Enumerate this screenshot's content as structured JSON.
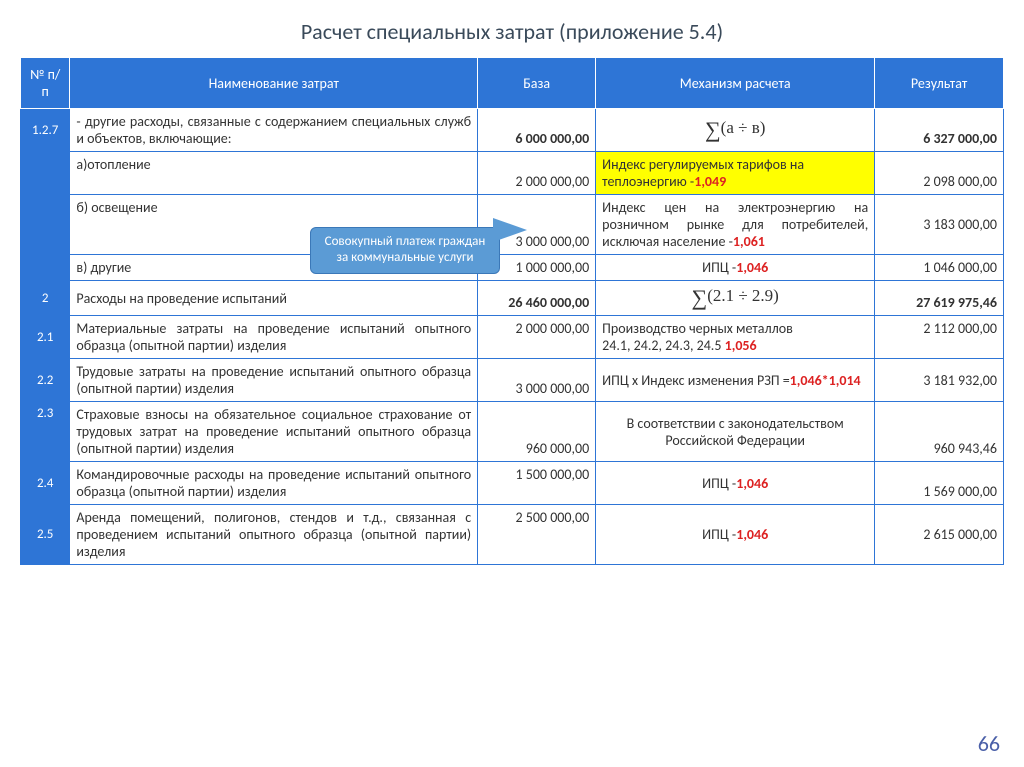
{
  "title": "Расчет специальных затрат (приложение 5.4)",
  "page_number": "66",
  "columns": {
    "c1": "№ п/п",
    "c2": "Наименование затрат",
    "c3": "База",
    "c4": "Механизм расчета",
    "c5": "Результат"
  },
  "callout": "Совокупный платеж граждан за коммунальные услуги",
  "rows": {
    "r1": {
      "id": "1.2.7",
      "name": "- другие расходы, связанные с содержанием специальных служб и объектов, включающие:",
      "base": "6 000 000,00",
      "mech": "∑(а ÷ в)",
      "res": "6 327 000,00"
    },
    "r2": {
      "id": "",
      "name": "а)отопление",
      "base": "2 000 000,00",
      "mech_pre": "Индекс регулируемых тарифов на теплоэнергию -",
      "mech_val": "1,049",
      "res": "2 098 000,00"
    },
    "r3": {
      "id": "",
      "name": "б) освещение",
      "base": "3 000 000,00",
      "mech_pre": "Индекс цен на электроэнергию на розничном рынке для потребителей, исключая население -",
      "mech_val": "1,061",
      "res": "3 183 000,00"
    },
    "r4": {
      "id": "",
      "name": "в) другие",
      "base": "1 000 000,00",
      "mech_pre": "ИПЦ -",
      "mech_val": "1,046",
      "res": "1 046 000,00"
    },
    "r5": {
      "id": "2",
      "name": "Расходы на проведение испытаний",
      "base": "26 460 000,00",
      "mech": "∑(2.1 ÷ 2.9)",
      "res": "27 619 975,46"
    },
    "r6": {
      "id": "2.1",
      "name": "Материальные затраты на проведение испытаний опытного образца (опытной партии) изделия",
      "base": "2 000 000,00",
      "mech_pre": "Производство черных металлов\n24.1, 24.2, 24.3, 24.5 ",
      "mech_val": "1,056",
      "res": "2 112 000,00"
    },
    "r7": {
      "id": "2.2",
      "name": "Трудовые затраты на проведение испытаний опытного образца (опытной партии) изделия",
      "base": "3 000 000,00",
      "mech_pre": "ИПЦ х Индекс изменения РЗП =",
      "mech_val": "1,046*1,014",
      "res": "3 181 932,00"
    },
    "r8": {
      "id": "2.3",
      "name": "Страховые взносы на обязательное социальное страхование от трудовых затрат на проведение испытаний опытного образца (опытной партии) изделия",
      "base": "960 000,00",
      "mech": "В соответствии с законодательством Российской Федерации",
      "res": "960 943,46"
    },
    "r9": {
      "id": "2.4",
      "name": "Командировочные расходы на проведение испытаний опытного образца (опытной партии) изделия",
      "base": "1 500 000,00",
      "mech_pre": "ИПЦ -",
      "mech_val": "1,046",
      "res": "1 569 000,00"
    },
    "r10": {
      "id": "2.5",
      "name": "Аренда помещений, полигонов, стендов и т.д., связанная с проведением испытаний опытного образца (опытной партии) изделия",
      "base": "2 500 000,00",
      "mech_pre": "ИПЦ -",
      "mech_val": "1,046",
      "res": "2 615 000,00"
    }
  },
  "colors": {
    "header_bg": "#2e75d6",
    "border": "#2e75d6",
    "highlight": "#ffff00",
    "emphasis": "#d22",
    "callout_bg": "#5b9bd5",
    "page_num": "#4a5fa8"
  }
}
